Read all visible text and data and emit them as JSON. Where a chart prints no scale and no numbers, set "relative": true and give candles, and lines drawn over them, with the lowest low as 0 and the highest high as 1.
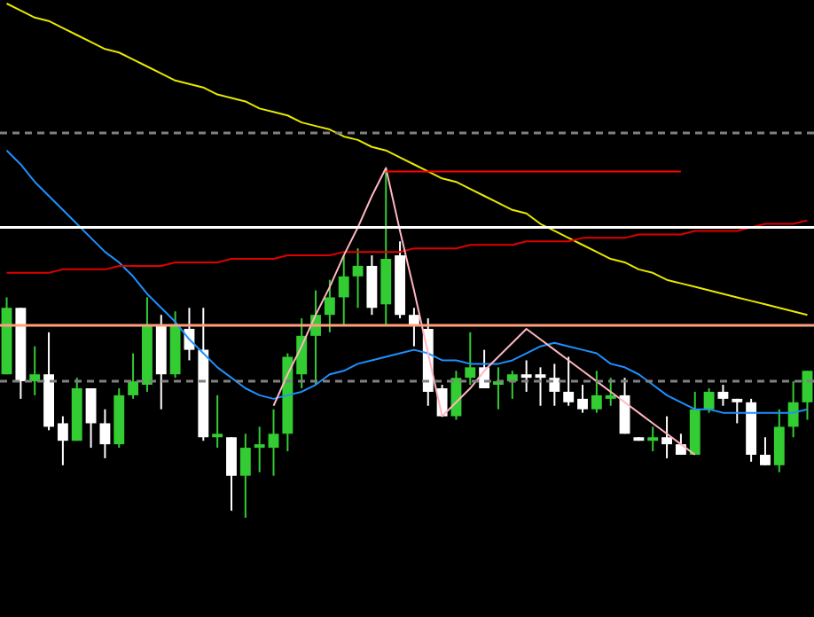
{
  "chart_data": {
    "type": "candlestick",
    "relative": true,
    "categories": [
      null,
      null,
      null,
      null,
      null,
      null,
      null,
      null,
      null,
      null,
      null,
      null,
      null,
      null,
      null,
      null,
      null,
      null,
      null,
      null,
      null,
      null,
      null,
      null,
      null,
      null,
      null,
      null,
      null,
      null,
      null,
      null,
      null,
      null,
      null,
      null,
      null,
      null,
      null,
      null,
      null,
      null,
      null,
      null,
      null,
      null,
      null,
      null,
      null,
      null,
      null,
      null,
      null,
      null,
      null,
      null,
      null,
      null
    ],
    "ohlc": [
      [
        0.41,
        0.63,
        0.41,
        0.6
      ],
      [
        0.6,
        0.6,
        0.34,
        0.39
      ],
      [
        0.39,
        0.49,
        0.35,
        0.41
      ],
      [
        0.41,
        0.53,
        0.25,
        0.26
      ],
      [
        0.27,
        0.29,
        0.15,
        0.22
      ],
      [
        0.22,
        0.4,
        0.22,
        0.37
      ],
      [
        0.37,
        0.37,
        0.2,
        0.27
      ],
      [
        0.27,
        0.31,
        0.17,
        0.21
      ],
      [
        0.21,
        0.37,
        0.2,
        0.35
      ],
      [
        0.35,
        0.47,
        0.34,
        0.39
      ],
      [
        0.38,
        0.63,
        0.36,
        0.55
      ],
      [
        0.55,
        0.58,
        0.31,
        0.41
      ],
      [
        0.41,
        0.59,
        0.4,
        0.55
      ],
      [
        0.54,
        0.6,
        0.45,
        0.48
      ],
      [
        0.48,
        0.6,
        0.22,
        0.23
      ],
      [
        0.23,
        0.35,
        0.2,
        0.24
      ],
      [
        0.23,
        0.23,
        0.02,
        0.12
      ],
      [
        0.12,
        0.24,
        0,
        0.2
      ],
      [
        0.2,
        0.26,
        0.13,
        0.21
      ],
      [
        0.2,
        0.31,
        0.12,
        0.24
      ],
      [
        0.24,
        0.47,
        0.19,
        0.46
      ],
      [
        0.41,
        0.57,
        0.37,
        0.52
      ],
      [
        0.52,
        0.65,
        0.38,
        0.58
      ],
      [
        0.58,
        0.68,
        0.53,
        0.63
      ],
      [
        0.63,
        0.75,
        0.55,
        0.69
      ],
      [
        0.69,
        0.77,
        0.6,
        0.72
      ],
      [
        0.72,
        0.75,
        0.58,
        0.6
      ],
      [
        0.61,
        1.0,
        0.55,
        0.74
      ],
      [
        0.75,
        0.79,
        0.57,
        0.58
      ],
      [
        0.58,
        0.6,
        0.49,
        0.55
      ],
      [
        0.54,
        0.57,
        0.32,
        0.36
      ],
      [
        0.37,
        0.38,
        0.29,
        0.29
      ],
      [
        0.29,
        0.42,
        0.28,
        0.4
      ],
      [
        0.4,
        0.53,
        0.38,
        0.43
      ],
      [
        0.43,
        0.48,
        0.37,
        0.37
      ],
      [
        0.38,
        0.43,
        0.31,
        0.39
      ],
      [
        0.39,
        0.42,
        0.34,
        0.41
      ],
      [
        0.41,
        0.45,
        0.36,
        0.4
      ],
      [
        0.41,
        0.43,
        0.32,
        0.4
      ],
      [
        0.4,
        0.44,
        0.32,
        0.36
      ],
      [
        0.36,
        0.46,
        0.32,
        0.33
      ],
      [
        0.34,
        0.38,
        0.3,
        0.31
      ],
      [
        0.31,
        0.42,
        0.3,
        0.35
      ],
      [
        0.34,
        0.4,
        0.32,
        0.35
      ],
      [
        0.35,
        0.4,
        0.24,
        0.24
      ],
      [
        0.23,
        0.23,
        0.22,
        0.22
      ],
      [
        0.22,
        0.26,
        0.19,
        0.23
      ],
      [
        0.23,
        0.29,
        0.17,
        0.21
      ],
      [
        0.21,
        0.24,
        0.18,
        0.18
      ],
      [
        0.18,
        0.36,
        0.18,
        0.31
      ],
      [
        0.31,
        0.37,
        0.3,
        0.36
      ],
      [
        0.36,
        0.38,
        0.32,
        0.34
      ],
      [
        0.34,
        0.34,
        0.27,
        0.33
      ],
      [
        0.33,
        0.34,
        0.16,
        0.18
      ],
      [
        0.18,
        0.23,
        0.15,
        0.15
      ],
      [
        0.15,
        0.31,
        0.13,
        0.26
      ],
      [
        0.26,
        0.39,
        0.23,
        0.33
      ],
      [
        0.33,
        0.42,
        0.28,
        0.42
      ]
    ],
    "colors": [
      "#33cc33",
      "#ffffff",
      "#33cc33",
      "#ffffff",
      "#ffffff",
      "#33cc33",
      "#ffffff",
      "#ffffff",
      "#33cc33",
      "#33cc33",
      "#33cc33",
      "#ffffff",
      "#33cc33",
      "#ffffff",
      "#ffffff",
      "#33cc33",
      "#ffffff",
      "#33cc33",
      "#33cc33",
      "#33cc33",
      "#33cc33",
      "#33cc33",
      "#33cc33",
      "#33cc33",
      "#33cc33",
      "#33cc33",
      "#ffffff",
      "#33cc33",
      "#ffffff",
      "#ffffff",
      "#ffffff",
      "#ffffff",
      "#33cc33",
      "#33cc33",
      "#ffffff",
      "#33cc33",
      "#33cc33",
      "#ffffff",
      "#ffffff",
      "#ffffff",
      "#ffffff",
      "#ffffff",
      "#33cc33",
      "#33cc33",
      "#ffffff",
      "#ffffff",
      "#33cc33",
      "#ffffff",
      "#ffffff",
      "#33cc33",
      "#33cc33",
      "#ffffff",
      "#ffffff",
      "#ffffff",
      "#ffffff",
      "#33cc33",
      "#33cc33",
      "#33cc33"
    ],
    "series": [
      {
        "type": "line",
        "color": "#e8e800",
        "values": [
          1.47,
          1.45,
          1.43,
          1.42,
          1.4,
          1.38,
          1.36,
          1.34,
          1.33,
          1.31,
          1.29,
          1.27,
          1.25,
          1.24,
          1.23,
          1.21,
          1.2,
          1.19,
          1.17,
          1.16,
          1.15,
          1.13,
          1.12,
          1.11,
          1.09,
          1.08,
          1.06,
          1.05,
          1.03,
          1.01,
          0.99,
          0.97,
          0.96,
          0.94,
          0.92,
          0.9,
          0.88,
          0.87,
          0.84,
          0.82,
          0.8,
          0.78,
          0.76,
          0.74,
          0.73,
          0.71,
          0.7,
          0.68,
          0.67,
          0.66,
          0.65,
          0.64,
          0.63,
          0.62,
          0.61,
          0.6,
          0.59,
          0.58
        ]
      },
      {
        "type": "line",
        "color": "#1e90ff",
        "values": [
          1.05,
          1.01,
          0.96,
          0.92,
          0.88,
          0.84,
          0.8,
          0.76,
          0.73,
          0.69,
          0.64,
          0.6,
          0.56,
          0.51,
          0.47,
          0.43,
          0.4,
          0.37,
          0.35,
          0.34,
          0.35,
          0.36,
          0.38,
          0.41,
          0.42,
          0.44,
          0.45,
          0.46,
          0.47,
          0.48,
          0.47,
          0.45,
          0.45,
          0.44,
          0.44,
          0.44,
          0.45,
          0.47,
          0.49,
          0.5,
          0.49,
          0.48,
          0.47,
          0.44,
          0.43,
          0.41,
          0.38,
          0.35,
          0.33,
          0.31,
          0.31,
          0.3,
          0.3,
          0.3,
          0.3,
          0.3,
          0.3,
          0.31
        ]
      },
      {
        "type": "line",
        "color": "#e00000",
        "values": [
          0.7,
          0.7,
          0.7,
          0.7,
          0.71,
          0.71,
          0.71,
          0.71,
          0.72,
          0.72,
          0.72,
          0.72,
          0.73,
          0.73,
          0.73,
          0.73,
          0.74,
          0.74,
          0.74,
          0.74,
          0.75,
          0.75,
          0.75,
          0.75,
          0.76,
          0.76,
          0.76,
          0.76,
          0.76,
          0.77,
          0.77,
          0.77,
          0.77,
          0.78,
          0.78,
          0.78,
          0.78,
          0.79,
          0.79,
          0.79,
          0.79,
          0.8,
          0.8,
          0.8,
          0.8,
          0.81,
          0.81,
          0.81,
          0.81,
          0.82,
          0.82,
          0.82,
          0.82,
          0.83,
          0.84,
          0.84,
          0.84,
          0.85
        ]
      },
      {
        "type": "line",
        "color": "#ffb6c1",
        "values": [
          null,
          null,
          null,
          null,
          null,
          null,
          null,
          null,
          null,
          null,
          null,
          null,
          null,
          null,
          null,
          null,
          null,
          null,
          null,
          0.32,
          0.41,
          0.49,
          0.58,
          0.66,
          0.75,
          0.83,
          0.92,
          1.0,
          0.82,
          0.65,
          0.47,
          0.29,
          0.33,
          0.37,
          0.42,
          0.46,
          0.5,
          0.54,
          0.51,
          0.48,
          0.45,
          0.42,
          0.39,
          0.36,
          0.33,
          0.3,
          0.27,
          0.24,
          0.21,
          0.18,
          null,
          null,
          null,
          null,
          null,
          null,
          null,
          null
        ]
      },
      {
        "type": "line",
        "color": "#ff0000",
        "values": [
          null,
          null,
          null,
          null,
          null,
          null,
          null,
          null,
          null,
          null,
          null,
          null,
          null,
          null,
          null,
          null,
          null,
          null,
          null,
          null,
          null,
          null,
          null,
          null,
          null,
          null,
          null,
          0.99,
          0.99,
          0.99,
          0.99,
          0.99,
          0.99,
          0.99,
          0.99,
          0.99,
          0.99,
          0.99,
          0.99,
          0.99,
          0.99,
          0.99,
          0.99,
          0.99,
          0.99,
          0.99,
          0.99,
          0.99,
          0.99,
          null,
          null,
          null,
          null,
          null,
          null,
          null,
          null,
          null
        ]
      }
    ],
    "ref_lines": [
      {
        "axis": "y",
        "value": 1.1,
        "color": "#808080",
        "line_style": "dashed"
      },
      {
        "axis": "y",
        "value": 0.83,
        "color": "#ffffff",
        "line_style": "solid"
      },
      {
        "axis": "y",
        "value": 0.55,
        "color": "#ffa07a",
        "line_style": "solid"
      },
      {
        "axis": "y",
        "value": 0.39,
        "color": "#808080",
        "line_style": "dashed"
      }
    ]
  }
}
